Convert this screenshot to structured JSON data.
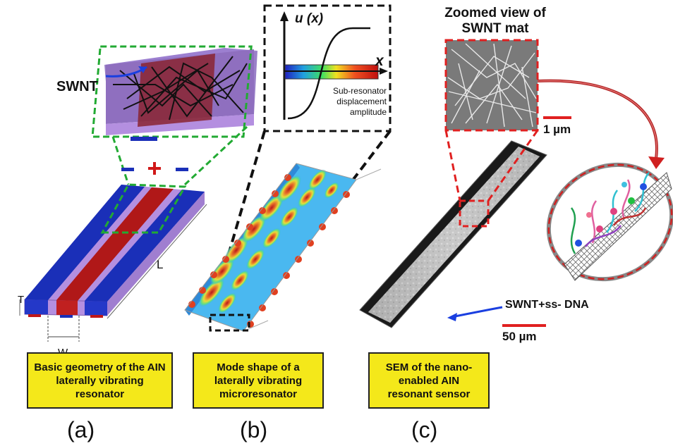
{
  "panel_a": {
    "swnt_label": "SWNT",
    "minus_left": "−",
    "plus": "+",
    "minus_right": "−",
    "dim_L": "L",
    "dim_T": "T",
    "dim_W": "W",
    "caption": "Basic geometry of the AIN laterally vibrating resonator",
    "letter": "(a)"
  },
  "panel_b": {
    "y_axis": "u (x)",
    "x_axis": "x",
    "inset_line1": "Sub-resonator",
    "inset_line2": "displacement",
    "inset_line3": "amplitude",
    "caption": "Mode shape of a laterally vibrating microresonator",
    "letter": "(b)"
  },
  "panel_c": {
    "zoom_title_line1": "Zoomed view of",
    "zoom_title_line2": "SWNT mat",
    "scale_1um": "1 µm",
    "swnt_dna": "SWNT+ss- DNA",
    "scale_50um": "50 µm",
    "caption": "SEM of the nano-enabled AIN resonant sensor",
    "letter": "(c)"
  },
  "colors": {
    "electrode_blue": "#1a2fb8",
    "electrode_red": "#b01818",
    "substrate_purple": "#b48fe0",
    "caption_yellow": "#f4e81a",
    "zoom_red": "#e02020",
    "zoom_green": "#22aa33"
  }
}
